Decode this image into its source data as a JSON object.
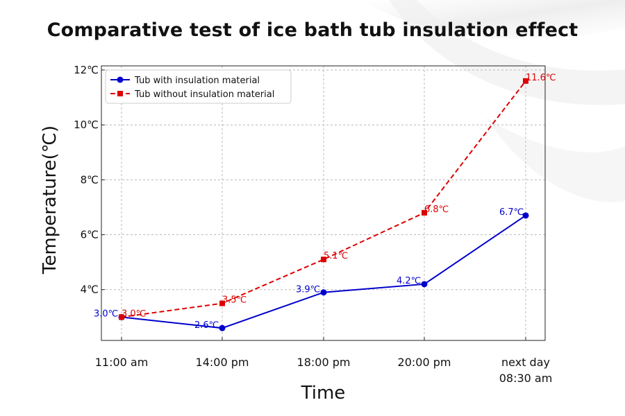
{
  "chart_data": {
    "type": "line",
    "title": "Comparative test of ice bath tub insulation effect",
    "xlabel": "Time",
    "ylabel": "Temperature(℃)",
    "categories": [
      "11:00 am",
      "14:00 pm",
      "18:00 pm",
      "20:00 pm",
      "next day\n08:30 am"
    ],
    "y_ticks": [
      4,
      6,
      8,
      10,
      12
    ],
    "y_tick_labels": [
      "4℃",
      "6℃",
      "8℃",
      "10℃",
      "12℃"
    ],
    "ylim": [
      2.15,
      12.15
    ],
    "grid": true,
    "legend_position": "top-left",
    "series": [
      {
        "name": "Tub with insulation material",
        "values": [
          3.0,
          2.6,
          3.9,
          4.2,
          6.7
        ],
        "labels": [
          "3.0℃",
          "2.6℃",
          "3.9℃",
          "4.2℃",
          "6.7℃"
        ],
        "color": "#0000cc",
        "marker": "circle",
        "line_style": "solid"
      },
      {
        "name": "Tub without insulation material",
        "values": [
          3.0,
          3.5,
          5.1,
          6.8,
          11.6
        ],
        "labels": [
          "3.0℃",
          "3.5℃",
          "5.1℃",
          "6.8℃",
          "11.6℃"
        ],
        "color": "#dd0000",
        "marker": "square",
        "line_style": "dashed"
      }
    ]
  }
}
